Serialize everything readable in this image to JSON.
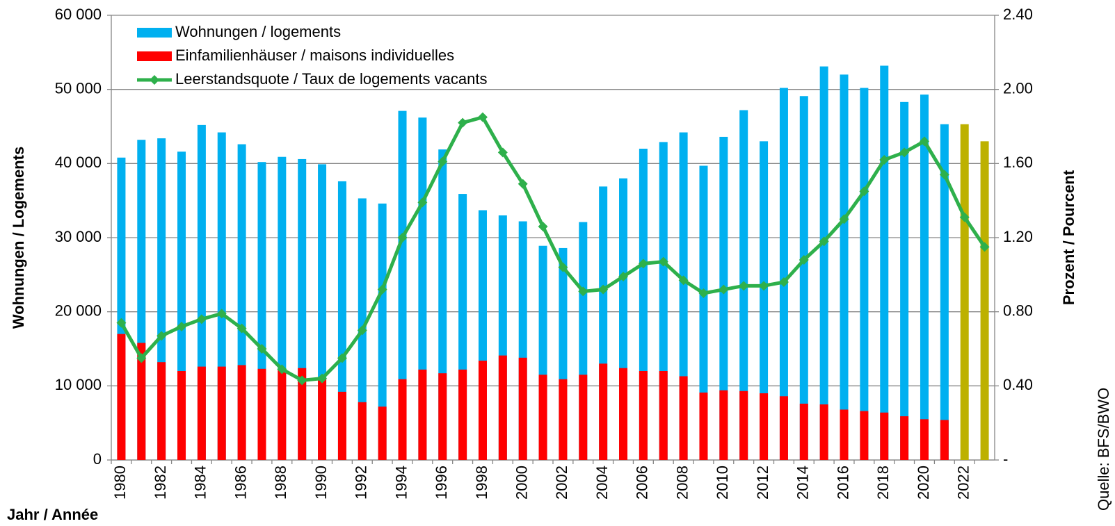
{
  "chart_data": {
    "type": "bar-line",
    "categories": [
      "1980",
      null,
      "1982",
      null,
      "1984",
      null,
      "1986",
      null,
      "1988",
      null,
      "1990",
      null,
      "1992",
      null,
      "1994",
      null,
      "1996",
      null,
      "1998",
      null,
      "2000",
      null,
      "2002",
      null,
      "2004",
      null,
      "2006",
      null,
      "2008",
      null,
      "2010",
      null,
      "2012",
      null,
      "2014",
      null,
      "2016",
      null,
      "2018",
      null,
      "2020",
      null,
      "2022",
      null
    ],
    "series": [
      {
        "name": "Wohnungen / logements",
        "type": "bar",
        "color": "#00b0f0",
        "colors": [
          "#00b0f0",
          "#00b0f0",
          "#00b0f0",
          "#00b0f0",
          "#00b0f0",
          "#00b0f0",
          "#00b0f0",
          "#00b0f0",
          "#00b0f0",
          "#00b0f0",
          "#00b0f0",
          "#00b0f0",
          "#00b0f0",
          "#00b0f0",
          "#00b0f0",
          "#00b0f0",
          "#00b0f0",
          "#00b0f0",
          "#00b0f0",
          "#00b0f0",
          "#00b0f0",
          "#00b0f0",
          "#00b0f0",
          "#00b0f0",
          "#00b0f0",
          "#00b0f0",
          "#00b0f0",
          "#00b0f0",
          "#00b0f0",
          "#00b0f0",
          "#00b0f0",
          "#00b0f0",
          "#00b0f0",
          "#00b0f0",
          "#00b0f0",
          "#00b0f0",
          "#00b0f0",
          "#00b0f0",
          "#00b0f0",
          "#00b0f0",
          "#00b0f0",
          "#00b0f0",
          "#bdb100",
          "#bdb100"
        ],
        "values": [
          40800,
          43200,
          43400,
          41600,
          45200,
          44200,
          42600,
          40200,
          40900,
          40600,
          39900,
          37600,
          35300,
          34600,
          47100,
          46200,
          41900,
          35900,
          33700,
          33000,
          32200,
          28900,
          28600,
          32100,
          36900,
          38000,
          42000,
          42900,
          44200,
          39700,
          43600,
          47200,
          43000,
          50200,
          49100,
          53100,
          52000,
          50200,
          53200,
          48300,
          49300,
          45300,
          45300,
          43000
        ]
      },
      {
        "name": "Einfamilienhäuser / maisons individuelles",
        "type": "bar",
        "color": "#ff0000",
        "values": [
          17000,
          15800,
          13200,
          12000,
          12600,
          12600,
          12800,
          12300,
          12100,
          12400,
          11100,
          9200,
          7800,
          7200,
          10900,
          12200,
          11700,
          12200,
          13400,
          14100,
          13800,
          11500,
          10900,
          11500,
          13000,
          12400,
          12000,
          12000,
          11300,
          9100,
          9400,
          9300,
          9000,
          8600,
          7600,
          7500,
          6800,
          6600,
          6400,
          5900,
          5500,
          5400,
          null,
          null
        ]
      },
      {
        "name": "Leerstandsquote / Taux de logements vacants",
        "type": "line",
        "color": "#2eb04b",
        "axis": "y2",
        "values": [
          0.74,
          0.55,
          0.67,
          0.72,
          0.76,
          0.79,
          0.71,
          0.6,
          0.49,
          0.43,
          0.44,
          0.55,
          0.7,
          0.92,
          1.2,
          1.39,
          1.61,
          1.82,
          1.85,
          1.66,
          1.49,
          1.26,
          1.04,
          0.91,
          0.92,
          0.99,
          1.06,
          1.07,
          0.97,
          0.9,
          0.92,
          0.94,
          0.94,
          0.96,
          1.08,
          1.18,
          1.3,
          1.45,
          1.62,
          1.66,
          1.72,
          1.54,
          1.31,
          1.15
        ]
      }
    ],
    "ylabel": "Wohnungen / Logements",
    "y2label": "Prozent / Pourcent",
    "xlabel": "Jahr / Année",
    "source": "Quelle: BFS/BWO",
    "ylim": [
      0,
      60000
    ],
    "yticks": [
      0,
      {
        "value": 10000,
        "label": "10 000"
      },
      {
        "value": 20000,
        "label": "20 000"
      },
      {
        "value": 30000,
        "label": "30 000"
      },
      {
        "value": 40000,
        "label": "40 000"
      },
      {
        "value": 50000,
        "label": "50 000"
      },
      {
        "value": 60000,
        "label": "60 000"
      }
    ],
    "y2lim": [
      0,
      2.4
    ],
    "y2ticks": [
      {
        "value": 0,
        "label": "-"
      },
      {
        "value": 0.4,
        "label": "0.40"
      },
      {
        "value": 0.8,
        "label": "0.80"
      },
      {
        "value": 1.2,
        "label": "1.20"
      },
      {
        "value": 1.6,
        "label": "1.60"
      },
      {
        "value": 2.0,
        "label": "2.00"
      },
      {
        "value": 2.4,
        "label": "2.40"
      }
    ],
    "grid": true,
    "legend": "top-left"
  }
}
